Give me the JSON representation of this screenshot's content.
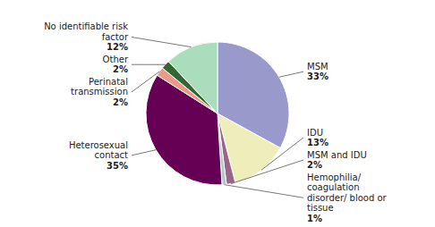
{
  "chart_data": {
    "type": "pie",
    "categories": [
      "MSM",
      "IDU",
      "MSM and IDU",
      "Hemophilia/\ncoagulation\ndisorder/ blood or\ntissue",
      "Heterosexual\ncontact",
      "Perinatal\ntransmission",
      "Other",
      "No identifiable risk\nfactor"
    ],
    "values": [
      33,
      13,
      2,
      1,
      35,
      2,
      2,
      12
    ],
    "value_labels": [
      "33%",
      "13%",
      "2%",
      "1%",
      "35%",
      "2%",
      "2%",
      "12%"
    ],
    "colors": [
      "#9999cc",
      "#eeeebb",
      "#996688",
      "#aacccc",
      "#660055",
      "#ee9988",
      "#336633",
      "#aaddbb"
    ]
  }
}
